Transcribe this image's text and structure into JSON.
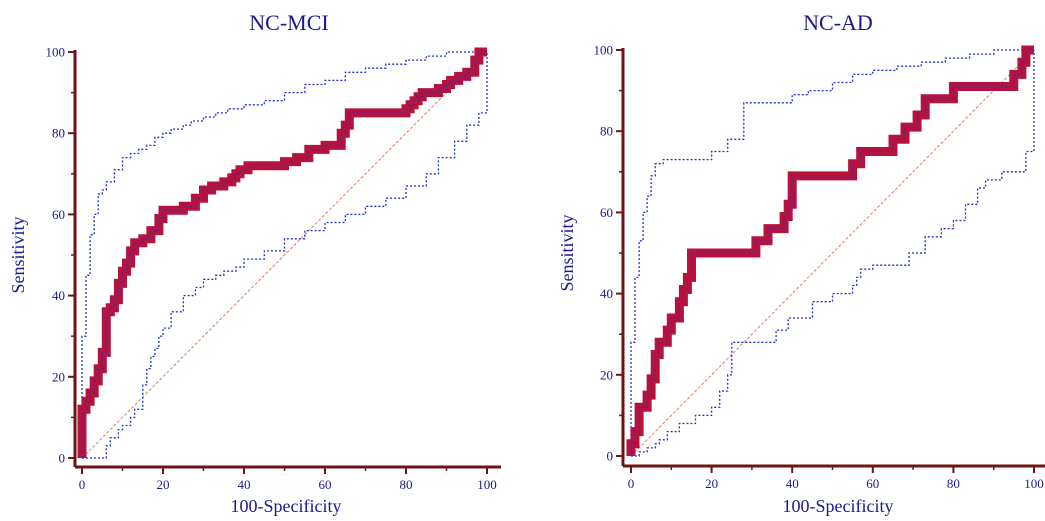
{
  "chart_data": [
    {
      "type": "line",
      "title": "NC-MCI",
      "xlabel": "100-Specificity",
      "ylabel": "Sensitivity",
      "xlim": [
        0,
        100
      ],
      "ylim": [
        0,
        100
      ],
      "xticks": [
        "0",
        "20",
        "40",
        "60",
        "80",
        "100"
      ],
      "yticks": [
        "0",
        "20",
        "40",
        "60",
        "80",
        "100"
      ],
      "colors": {
        "roc": "#b5123e",
        "ci": "#1f2fcc",
        "diagonal": "#e07a6a",
        "axis": "#6e1414"
      },
      "series": [
        {
          "role": "roc",
          "x": [
            0,
            0,
            1,
            1,
            2,
            2,
            3,
            3,
            4,
            4,
            5,
            5,
            6,
            6,
            7,
            7,
            8,
            8,
            9,
            9,
            10,
            10,
            11,
            11,
            12,
            12,
            13,
            13,
            15,
            15,
            17,
            17,
            19,
            19,
            20,
            20,
            25,
            25,
            28,
            28,
            30,
            30,
            32,
            32,
            35,
            35,
            37,
            37,
            38,
            38,
            39,
            39,
            41,
            41,
            50,
            50,
            53,
            53,
            56,
            56,
            60,
            60,
            64,
            64,
            65,
            65,
            66,
            66,
            80,
            80,
            81,
            81,
            82,
            82,
            83,
            83,
            84,
            84,
            86,
            86,
            88,
            88,
            90,
            90,
            91,
            91,
            92,
            92,
            93,
            93,
            94,
            94,
            95,
            95,
            96,
            96,
            97,
            97,
            98,
            98,
            100
          ],
          "y": [
            0,
            12,
            12,
            14,
            14,
            16,
            16,
            19,
            19,
            22,
            22,
            26,
            26,
            36,
            36,
            37,
            37,
            39,
            39,
            43,
            43,
            46,
            46,
            48,
            48,
            51,
            51,
            53,
            53,
            54,
            54,
            56,
            56,
            59,
            59,
            61,
            61,
            62,
            62,
            64,
            64,
            66,
            66,
            67,
            67,
            68,
            68,
            69,
            69,
            70,
            70,
            71,
            71,
            72,
            72,
            73,
            73,
            74,
            74,
            76,
            76,
            77,
            77,
            80,
            80,
            82,
            82,
            85,
            85,
            86,
            86,
            87,
            87,
            88,
            88,
            89,
            89,
            90,
            90,
            90,
            90,
            91,
            91,
            92,
            92,
            93,
            93,
            93,
            93,
            94,
            94,
            94,
            94,
            95,
            95,
            95,
            95,
            98,
            98,
            100,
            100
          ]
        },
        {
          "role": "ci-upper",
          "x": [
            0,
            0,
            1,
            1,
            2,
            2,
            3,
            3,
            4,
            4,
            5,
            5,
            6,
            6,
            8,
            8,
            10,
            10,
            12,
            12,
            14,
            14,
            16,
            16,
            18,
            18,
            20,
            20,
            22,
            22,
            25,
            25,
            27,
            27,
            30,
            30,
            33,
            33,
            36,
            36,
            40,
            40,
            45,
            45,
            50,
            50,
            55,
            55,
            60,
            60,
            65,
            65,
            70,
            70,
            75,
            75,
            80,
            80,
            85,
            85,
            90,
            90,
            95,
            95,
            100
          ],
          "y": [
            0,
            30,
            30,
            45,
            45,
            55,
            55,
            60,
            60,
            65,
            65,
            66,
            66,
            68,
            68,
            71,
            71,
            74,
            74,
            75,
            75,
            76,
            76,
            77,
            77,
            79,
            79,
            80,
            80,
            81,
            81,
            82,
            82,
            83,
            83,
            84,
            84,
            85,
            85,
            86,
            86,
            87,
            87,
            88,
            88,
            90,
            90,
            92,
            92,
            93,
            93,
            95,
            95,
            96,
            96,
            97,
            97,
            98,
            98,
            99,
            99,
            100,
            100,
            100,
            100
          ]
        },
        {
          "role": "ci-lower",
          "x": [
            0,
            6,
            6,
            7,
            7,
            9,
            9,
            10,
            10,
            12,
            12,
            13,
            13,
            15,
            15,
            16,
            16,
            17,
            17,
            18,
            18,
            19,
            19,
            20,
            20,
            22,
            22,
            25,
            25,
            28,
            28,
            30,
            30,
            33,
            33,
            35,
            35,
            38,
            38,
            40,
            40,
            45,
            45,
            50,
            50,
            55,
            55,
            60,
            60,
            65,
            65,
            70,
            70,
            75,
            75,
            80,
            80,
            85,
            85,
            88,
            88,
            92,
            92,
            95,
            95,
            98,
            98,
            100,
            100
          ],
          "y": [
            0,
            0,
            3,
            3,
            5,
            5,
            7,
            7,
            8,
            8,
            10,
            10,
            12,
            12,
            18,
            18,
            22,
            22,
            25,
            25,
            27,
            27,
            30,
            30,
            32,
            32,
            36,
            36,
            40,
            40,
            42,
            42,
            44,
            44,
            45,
            45,
            46,
            46,
            47,
            47,
            49,
            49,
            51,
            51,
            54,
            54,
            56,
            56,
            58,
            58,
            60,
            60,
            62,
            62,
            64,
            64,
            67,
            67,
            70,
            70,
            74,
            74,
            78,
            78,
            82,
            82,
            85,
            85,
            100
          ]
        },
        {
          "role": "diagonal",
          "x": [
            0,
            100
          ],
          "y": [
            0,
            100
          ]
        }
      ]
    },
    {
      "type": "line",
      "title": "NC-AD",
      "xlabel": "100-Specificity",
      "ylabel": "Sensitivity",
      "xlim": [
        0,
        100
      ],
      "ylim": [
        0,
        100
      ],
      "xticks": [
        "0",
        "20",
        "40",
        "60",
        "80",
        "100"
      ],
      "yticks": [
        "0",
        "20",
        "40",
        "60",
        "80",
        "100"
      ],
      "colors": {
        "roc": "#b5123e",
        "ci": "#1f2fcc",
        "diagonal": "#e07a6a",
        "axis": "#6e1414"
      },
      "series": [
        {
          "role": "roc",
          "x": [
            0,
            0,
            1,
            1,
            2,
            2,
            4,
            4,
            5,
            5,
            6,
            6,
            7,
            7,
            9,
            9,
            10,
            10,
            12,
            12,
            13,
            13,
            14,
            14,
            15,
            15,
            31,
            31,
            34,
            34,
            38,
            38,
            39,
            39,
            40,
            40,
            55,
            55,
            57,
            57,
            65,
            65,
            68,
            68,
            71,
            71,
            73,
            73,
            74,
            74,
            80,
            80,
            95,
            95,
            97,
            97,
            98,
            98,
            100
          ],
          "y": [
            0,
            3,
            3,
            6,
            6,
            12,
            12,
            15,
            15,
            19,
            19,
            25,
            25,
            28,
            28,
            31,
            31,
            34,
            34,
            38,
            38,
            41,
            41,
            44,
            44,
            50,
            50,
            53,
            53,
            56,
            56,
            59,
            59,
            62,
            62,
            69,
            69,
            72,
            72,
            75,
            75,
            78,
            78,
            81,
            81,
            84,
            84,
            88,
            88,
            88,
            88,
            91,
            91,
            94,
            94,
            97,
            97,
            100,
            100
          ]
        },
        {
          "role": "ci-upper",
          "x": [
            0,
            0,
            1,
            1,
            2,
            2,
            3,
            3,
            4,
            4,
            5,
            5,
            6,
            6,
            8,
            8,
            20,
            20,
            24,
            24,
            28,
            28,
            40,
            40,
            44,
            44,
            50,
            50,
            55,
            55,
            60,
            60,
            66,
            66,
            72,
            72,
            78,
            78,
            84,
            84,
            90,
            90,
            97,
            97,
            100
          ],
          "y": [
            0,
            28,
            28,
            44,
            44,
            53,
            53,
            60,
            60,
            64,
            64,
            69,
            69,
            72,
            72,
            73,
            73,
            75,
            75,
            78,
            78,
            87,
            87,
            89,
            89,
            90,
            90,
            92,
            92,
            94,
            94,
            95,
            95,
            96,
            96,
            97,
            97,
            98,
            98,
            99,
            99,
            100,
            100,
            100,
            100
          ]
        },
        {
          "role": "ci-lower",
          "x": [
            0,
            2,
            2,
            4,
            4,
            6,
            6,
            7,
            7,
            9,
            9,
            12,
            12,
            16,
            16,
            20,
            20,
            22,
            22,
            24,
            24,
            25,
            25,
            36,
            36,
            39,
            39,
            45,
            45,
            50,
            50,
            55,
            55,
            56,
            56,
            57,
            57,
            60,
            60,
            69,
            69,
            73,
            73,
            77,
            77,
            80,
            80,
            83,
            83,
            86,
            86,
            88,
            88,
            92,
            92,
            94,
            94,
            98,
            98,
            100,
            100
          ],
          "y": [
            0,
            0,
            1,
            1,
            2,
            2,
            3,
            3,
            4,
            4,
            6,
            6,
            8,
            8,
            10,
            10,
            12,
            12,
            16,
            16,
            20,
            20,
            28,
            28,
            31,
            31,
            34,
            34,
            38,
            38,
            40,
            40,
            42,
            42,
            44,
            44,
            46,
            46,
            47,
            47,
            50,
            50,
            54,
            54,
            56,
            56,
            58,
            58,
            62,
            62,
            66,
            66,
            68,
            68,
            70,
            70,
            70,
            70,
            75,
            75,
            100
          ]
        },
        {
          "role": "diagonal",
          "x": [
            0,
            100
          ],
          "y": [
            0,
            100
          ]
        }
      ]
    }
  ]
}
